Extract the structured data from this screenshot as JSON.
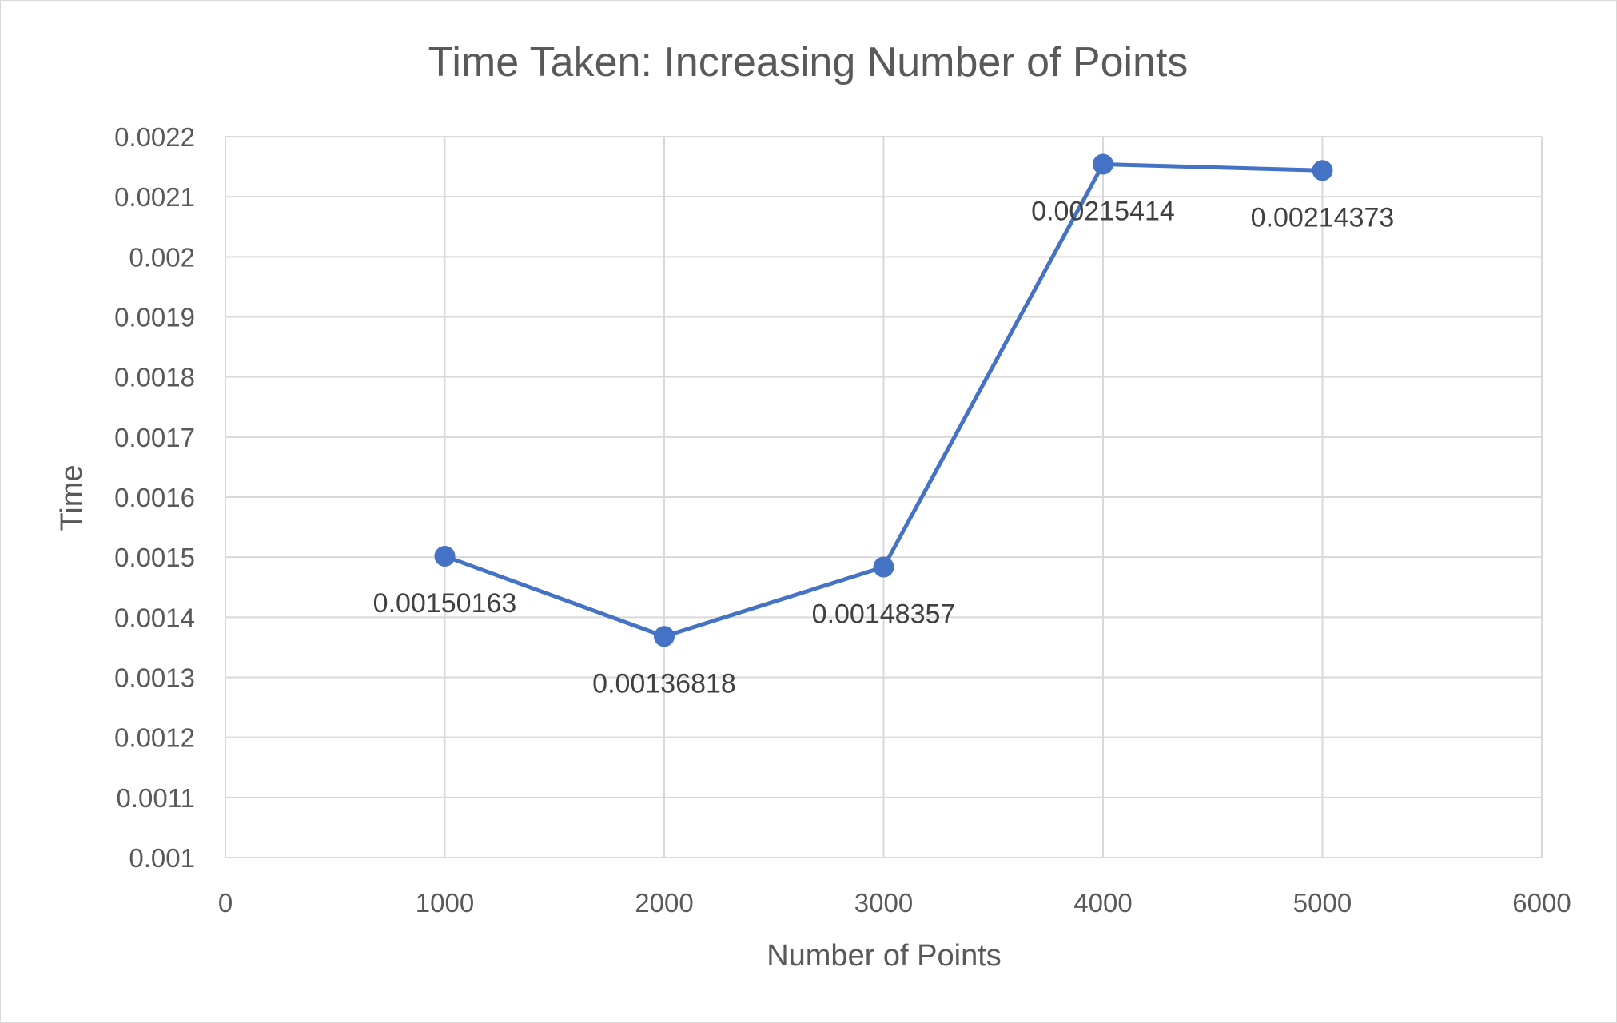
{
  "chart_data": {
    "type": "line",
    "title": "Time Taken: Increasing Number of Points",
    "xlabel": "Number of Points",
    "ylabel": "Time",
    "xlim": [
      0,
      6000
    ],
    "ylim": [
      0.001,
      0.0022
    ],
    "x_ticks": [
      0,
      1000,
      2000,
      3000,
      4000,
      5000,
      6000
    ],
    "y_ticks": [
      0.001,
      0.0011,
      0.0012,
      0.0013,
      0.0014,
      0.0015,
      0.0016,
      0.0017,
      0.0018,
      0.0019,
      0.002,
      0.0021,
      0.0022
    ],
    "x_tick_labels": [
      "0",
      "1000",
      "2000",
      "3000",
      "4000",
      "5000",
      "6000"
    ],
    "y_tick_labels": [
      "0.001",
      "0.0011",
      "0.0012",
      "0.0013",
      "0.0014",
      "0.0015",
      "0.0016",
      "0.0017",
      "0.0018",
      "0.0019",
      "0.002",
      "0.0021",
      "0.0022"
    ],
    "grid": true,
    "series": [
      {
        "color": "#4472c4",
        "x": [
          1000,
          2000,
          3000,
          4000,
          5000
        ],
        "y": [
          0.00150163,
          0.00136818,
          0.00148357,
          0.00215414,
          0.00214373
        ],
        "data_labels": [
          "0.00150163",
          "0.00136818",
          "0.00148357",
          "0.00215414",
          "0.00214373"
        ]
      }
    ]
  }
}
